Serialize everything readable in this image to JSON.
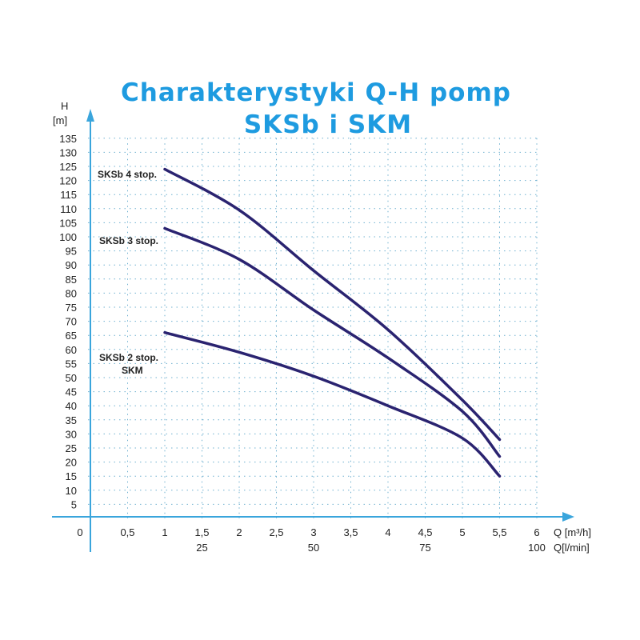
{
  "chart_data": {
    "type": "line",
    "title": "Charakterystyki Q-H pomp",
    "subtitle": "SKSb i SKM",
    "ylabel": "H",
    "ylabel_unit": "[m]",
    "xlabel": "Q [m³/h]",
    "xlabel2": "Q[l/min]",
    "xlim": [
      0,
      6
    ],
    "ylim": [
      0,
      135
    ],
    "grid": true,
    "x_ticks": [
      "0",
      "0,5",
      "1",
      "1,5",
      "2",
      "2,5",
      "3",
      "3,5",
      "4",
      "4,5",
      "5",
      "5,5",
      "6"
    ],
    "x2_ticks": [
      {
        "at": 1.5,
        "label": "25"
      },
      {
        "at": 3,
        "label": "50"
      },
      {
        "at": 4.5,
        "label": "75"
      },
      {
        "at": 6,
        "label": "100"
      }
    ],
    "y_ticks": [
      "5",
      "10",
      "15",
      "20",
      "25",
      "30",
      "35",
      "40",
      "45",
      "50",
      "55",
      "60",
      "65",
      "70",
      "75",
      "80",
      "85",
      "90",
      "95",
      "100",
      "105",
      "110",
      "115",
      "120",
      "125",
      "130",
      "135"
    ],
    "line_color": "#2a2370",
    "axis_color": "#3aa5dc",
    "series": [
      {
        "name": "SKSb 4 stop.",
        "x": [
          1,
          2,
          3,
          4,
          5,
          5.5
        ],
        "y": [
          124,
          109.5,
          88,
          67,
          42,
          28
        ]
      },
      {
        "name": "SKSb 3 stop.",
        "x": [
          1,
          2,
          3,
          4,
          5,
          5.5
        ],
        "y": [
          103,
          92,
          74,
          57,
          38,
          22
        ]
      },
      {
        "name": "SKSb 2 stop.",
        "name2": "SKM",
        "x": [
          1,
          2,
          3,
          4,
          5,
          5.5
        ],
        "y": [
          66,
          59,
          50.5,
          40,
          28.5,
          15
        ]
      }
    ]
  }
}
